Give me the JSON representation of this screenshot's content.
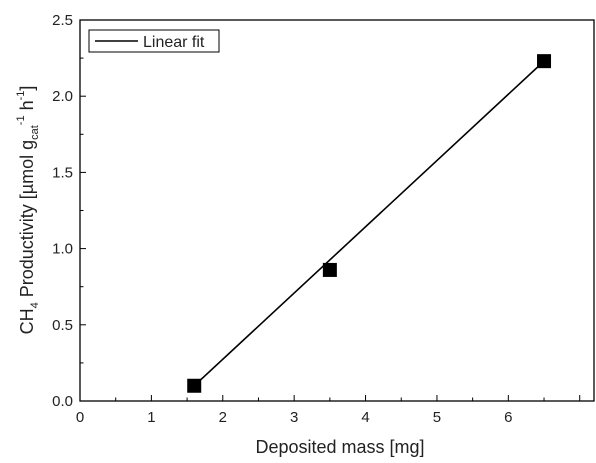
{
  "chart_data": {
    "type": "scatter",
    "xlabel": "Deposited mass [mg]",
    "ylabel": {
      "prefix": "CH",
      "sub1": "4",
      "middle": " Productivity [µmol g",
      "sub2": "cat",
      "sup1": "-1",
      "space": " h",
      "sup2": "-1",
      "suffix": "]"
    },
    "xlim": [
      0,
      7.2
    ],
    "ylim": [
      0,
      2.5
    ],
    "xticks": [
      0,
      1,
      2,
      3,
      4,
      5,
      6
    ],
    "xtick_labels": [
      "0",
      "1",
      "2",
      "3",
      "4",
      "5",
      "6"
    ],
    "yticks": [
      0.0,
      0.5,
      1.0,
      1.5,
      2.0,
      2.5
    ],
    "ytick_labels": [
      "0.0",
      "0.5",
      "1.0",
      "1.5",
      "2.0",
      "2.5"
    ],
    "grid": false,
    "legend_position": "top-left",
    "series": [
      {
        "kind": "points",
        "marker": "square",
        "color": "#000000",
        "x": [
          1.6,
          3.5,
          6.5
        ],
        "y": [
          0.1,
          0.86,
          2.23
        ]
      },
      {
        "name": "Linear fit",
        "kind": "line",
        "color": "#000000",
        "x": [
          1.6,
          6.5
        ],
        "y": [
          0.1,
          2.23
        ]
      }
    ]
  }
}
